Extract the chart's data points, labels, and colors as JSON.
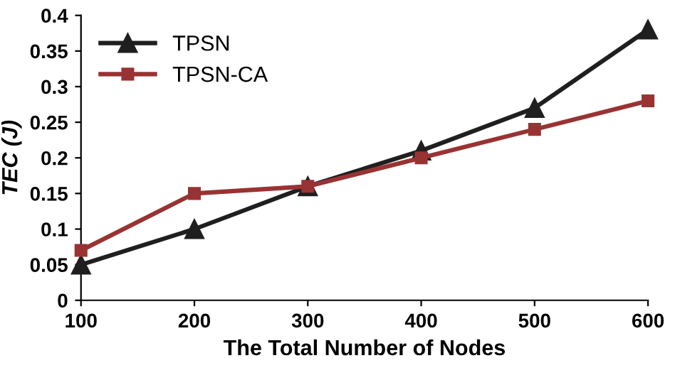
{
  "chart_data": {
    "type": "line",
    "xlabel": "The Total Number of Nodes",
    "ylabel": "TEC (J)",
    "x": [
      100,
      200,
      300,
      400,
      500,
      600
    ],
    "series": [
      {
        "name": "TPSN",
        "color": "#1f1f1f",
        "marker": "triangle",
        "values": [
          0.05,
          0.1,
          0.16,
          0.21,
          0.27,
          0.38
        ]
      },
      {
        "name": "TPSN-CA",
        "color": "#993333",
        "marker": "square",
        "values": [
          0.07,
          0.15,
          0.16,
          0.2,
          0.24,
          0.28
        ]
      }
    ],
    "xlim": [
      100,
      600
    ],
    "xticks": [
      100,
      200,
      300,
      400,
      500,
      600
    ],
    "ylim": [
      0,
      0.4
    ],
    "yticks": [
      0,
      0.05,
      0.1,
      0.15,
      0.2,
      0.25,
      0.3,
      0.35,
      0.4
    ],
    "grid": false,
    "legend": "top left",
    "line_style": "solid"
  }
}
